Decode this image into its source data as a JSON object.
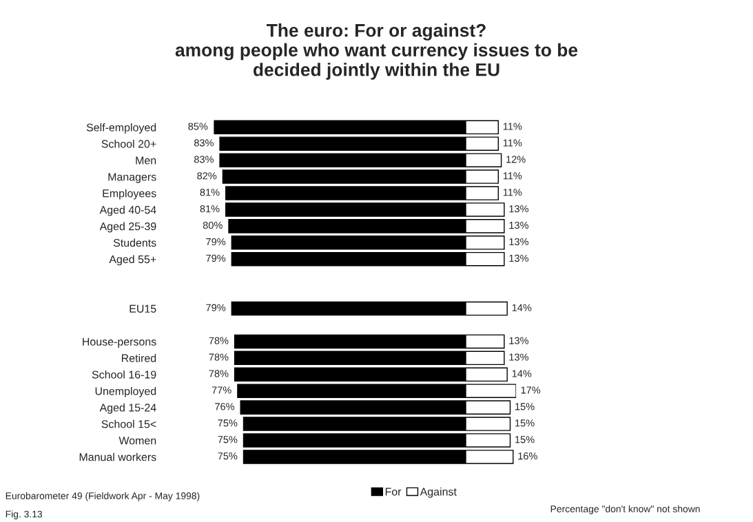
{
  "chart_data": [
    {
      "type": "bar",
      "orientation": "horizontal",
      "title": "The euro: For or against?\namong people who want currency issues to be\ndecided jointly within the EU",
      "categories": [
        "Self-employed",
        "School 20+",
        "Men",
        "Managers",
        "Employees",
        "Aged 40-54",
        "Aged 25-39",
        "Students",
        "Aged 55+",
        null,
        null,
        "EU15",
        null,
        "House-persons",
        "Retired",
        "School 16-19",
        "Unemployed",
        "Aged 15-24",
        "School 15<",
        "Women",
        "Manual workers"
      ],
      "series": [
        {
          "name": "For",
          "color": "#000000",
          "values": [
            85,
            83,
            83,
            82,
            81,
            81,
            80,
            79,
            79,
            null,
            null,
            79,
            null,
            78,
            78,
            78,
            77,
            76,
            75,
            75,
            75
          ],
          "value_labels": [
            "85%",
            "83%",
            "83%",
            "82%",
            "81%",
            "81%",
            "80%",
            "79%",
            "79%",
            null,
            null,
            "79%",
            null,
            "78%",
            "78%",
            "78%",
            "77%",
            "76%",
            "75%",
            "75%",
            "75%"
          ]
        }
      ],
      "xlim": [
        85,
        0
      ],
      "tick_labels": "y",
      "legend": "bottom",
      "annotations": [
        "Eurobarometer 49 (Fieldwork Apr - May 1998)",
        "Fig. 3.13",
        "Percentage \"don't know\" not shown"
      ]
    },
    {
      "type": "bar",
      "orientation": "horizontal",
      "series": [
        {
          "name": "Against",
          "color": "#ffffff",
          "values": [
            11,
            11,
            12,
            11,
            11,
            13,
            13,
            13,
            13,
            null,
            null,
            14,
            null,
            13,
            13,
            14,
            17,
            15,
            15,
            15,
            16
          ],
          "value_labels": [
            "11%",
            "11%",
            "12%",
            "11%",
            "11%",
            "13%",
            "13%",
            "13%",
            "13%",
            null,
            null,
            "14%",
            null,
            "13%",
            "13%",
            "14%",
            "17%",
            "15%",
            "15%",
            "15%",
            "16%"
          ]
        }
      ],
      "xlim": [
        0,
        17
      ],
      "tick_labels": false,
      "legend": "bottom"
    }
  ]
}
